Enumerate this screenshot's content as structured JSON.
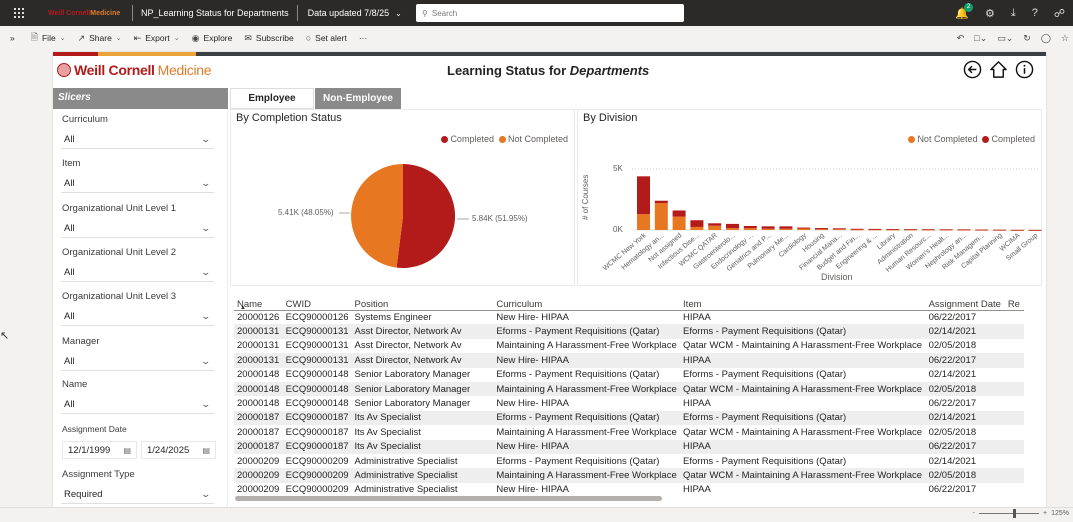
{
  "appbar": {
    "brand_part1": "Weill Cornell",
    "brand_part2": "Medicine",
    "report_name": "NP_Learning Status for Departments",
    "data_updated": "Data updated 7/8/25",
    "search_placeholder": "Search",
    "notification_count": "2"
  },
  "cmdbar": {
    "expand": "»",
    "file": "File",
    "share": "Share",
    "export": "Export",
    "explore": "Explore",
    "subscribe": "Subscribe",
    "set_alert": "Set alert",
    "more": "···"
  },
  "report": {
    "logo_part1": "Weill Cornell",
    "logo_part2": "Medicine",
    "title_prefix": "Learning Status for ",
    "title_emph": "Departments",
    "tabs": [
      {
        "label": "Employee",
        "active": true
      },
      {
        "label": "Non-Employee",
        "active": false
      }
    ],
    "slicers_header": "Slicers",
    "slicers": [
      {
        "label": "Curriculum",
        "value": "All"
      },
      {
        "label": "Item",
        "value": "All"
      },
      {
        "label": "Organizational Unit Level 1",
        "value": "All"
      },
      {
        "label": "Organizational Unit Level 2",
        "value": "All"
      },
      {
        "label": "Organizational Unit Level 3",
        "value": "All"
      },
      {
        "label": "Manager",
        "value": "All"
      },
      {
        "label": "Name",
        "value": "All"
      }
    ],
    "assignment_date": {
      "label": "Assignment Date",
      "from": "12/1/1999",
      "to": "1/24/2025"
    },
    "assignment_type": {
      "label": "Assignment Type",
      "value": "Required"
    }
  },
  "colors": {
    "completed": "#b31b1b",
    "not_completed": "#e87722",
    "brand_red": "#b31b1b",
    "brand_orange": "#e07b29",
    "slicer_header": "#8a8a8a"
  },
  "chart_data": [
    {
      "type": "pie",
      "title": "By Completion Status",
      "legend": [
        "Completed",
        "Not Completed"
      ],
      "legend_position": "top-right",
      "categories": [
        "Completed",
        "Not Completed"
      ],
      "values": [
        5840,
        5410
      ],
      "labels": [
        "5.84K (51.95%)",
        "5.41K (48.05%)"
      ],
      "percent": [
        51.95,
        48.05
      ]
    },
    {
      "type": "bar",
      "stacked": true,
      "title": "By Division",
      "xlabel": "Division",
      "ylabel": "# of Courses",
      "yticks": [
        "0K",
        "5K"
      ],
      "ylim": [
        0,
        5000
      ],
      "grid": true,
      "legend": [
        "Not Completed",
        "Completed"
      ],
      "legend_position": "top-right",
      "categories": [
        "WCMC New York",
        "Hematology an...",
        "Not assigned",
        "Infectious Dise...",
        "WCMC QATAR",
        "Gastroenterolo...",
        "Endocrinology ...",
        "Geriatrics and P...",
        "Pulmonary Me...",
        "Cardiology",
        "Housing",
        "Financial Mana...",
        "Budget and Fin...",
        "Engineering & ...",
        "Library",
        "Administration",
        "Human Resourc...",
        "Women's Healt...",
        "Nephrology an...",
        "Risk Managem...",
        "Capital Planning",
        "WCIMA",
        "Small Group"
      ],
      "series": [
        {
          "name": "Not Completed",
          "values": [
            1300,
            2200,
            1100,
            250,
            350,
            150,
            150,
            100,
            100,
            120,
            60,
            60,
            40,
            40,
            30,
            30,
            25,
            25,
            20,
            15,
            10,
            5,
            5
          ]
        },
        {
          "name": "Completed",
          "values": [
            3100,
            200,
            500,
            550,
            200,
            350,
            180,
            200,
            200,
            80,
            100,
            80,
            60,
            50,
            50,
            40,
            35,
            30,
            30,
            20,
            15,
            10,
            5
          ]
        }
      ]
    }
  ],
  "table": {
    "columns": [
      "Name",
      "CWID",
      "Position",
      "Curriculum",
      "Item",
      "Assignment Date",
      "Re"
    ],
    "rows": [
      [
        "20000126",
        "ECQ90000126",
        "Systems Engineer",
        "New Hire- HIPAA",
        "HIPAA",
        "06/22/2017"
      ],
      [
        "20000131",
        "ECQ90000131",
        "Asst Director, Network Av",
        "Eforms - Payment Requisitions (Qatar)",
        "Eforms - Payment Requisitions (Qatar)",
        "02/14/2021"
      ],
      [
        "20000131",
        "ECQ90000131",
        "Asst Director, Network Av",
        "Maintaining A Harassment-Free Workplace",
        "Qatar WCM - Maintaining A Harassment-Free Workplace",
        "02/05/2018"
      ],
      [
        "20000131",
        "ECQ90000131",
        "Asst Director, Network Av",
        "New Hire- HIPAA",
        "HIPAA",
        "06/22/2017"
      ],
      [
        "20000148",
        "ECQ90000148",
        "Senior Laboratory Manager",
        "Eforms - Payment Requisitions (Qatar)",
        "Eforms - Payment Requisitions (Qatar)",
        "02/14/2021"
      ],
      [
        "20000148",
        "ECQ90000148",
        "Senior Laboratory Manager",
        "Maintaining A Harassment-Free Workplace",
        "Qatar WCM - Maintaining A Harassment-Free Workplace",
        "02/05/2018"
      ],
      [
        "20000148",
        "ECQ90000148",
        "Senior Laboratory Manager",
        "New Hire- HIPAA",
        "HIPAA",
        "06/22/2017"
      ],
      [
        "20000187",
        "ECQ90000187",
        "Its Av Specialist",
        "Eforms - Payment Requisitions (Qatar)",
        "Eforms - Payment Requisitions (Qatar)",
        "02/14/2021"
      ],
      [
        "20000187",
        "ECQ90000187",
        "Its Av Specialist",
        "Maintaining A Harassment-Free Workplace",
        "Qatar WCM - Maintaining A Harassment-Free Workplace",
        "02/05/2018"
      ],
      [
        "20000187",
        "ECQ90000187",
        "Its Av Specialist",
        "New Hire- HIPAA",
        "HIPAA",
        "06/22/2017"
      ],
      [
        "20000209",
        "ECQ90000209",
        "Administrative Specialist",
        "Eforms - Payment Requisitions (Qatar)",
        "Eforms - Payment Requisitions (Qatar)",
        "02/14/2021"
      ],
      [
        "20000209",
        "ECQ90000209",
        "Administrative Specialist",
        "Maintaining A Harassment-Free Workplace",
        "Qatar WCM - Maintaining A Harassment-Free Workplace",
        "02/05/2018"
      ],
      [
        "20000209",
        "ECQ90000209",
        "Administrative Specialist",
        "New Hire- HIPAA",
        "HIPAA",
        "06/22/2017"
      ]
    ]
  },
  "statusbar": {
    "zoom_minus": "-",
    "zoom_plus": "+",
    "zoom_level": "125%"
  }
}
